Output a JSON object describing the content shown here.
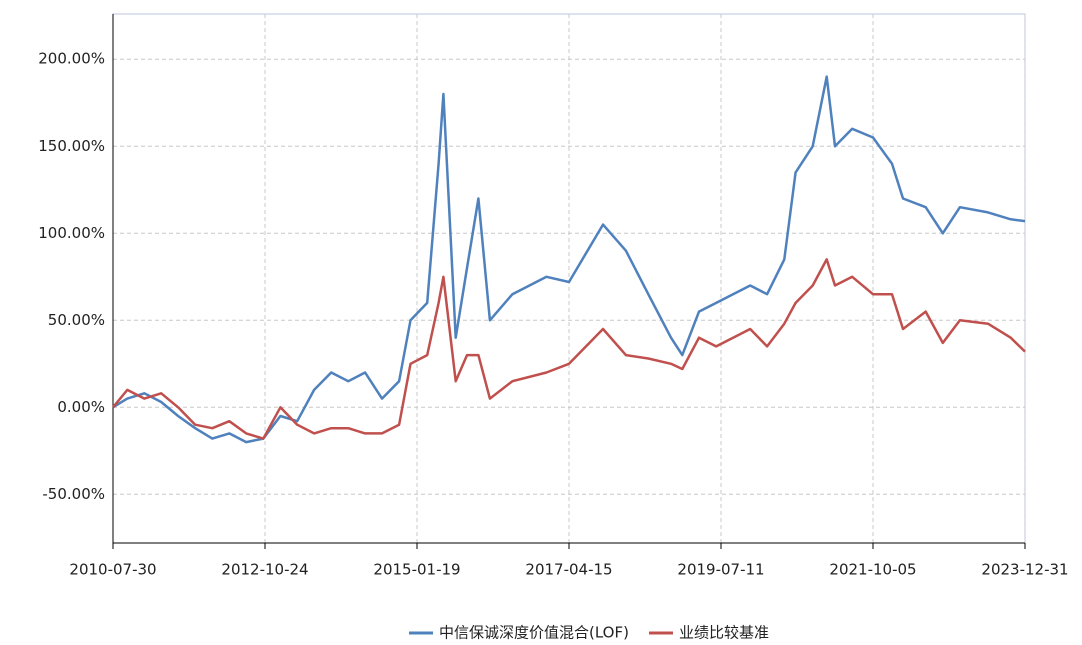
{
  "chart_data": {
    "type": "line",
    "x": [
      "2010-07-30",
      "2010-10-15",
      "2011-01-15",
      "2011-04-15",
      "2011-07-15",
      "2011-10-15",
      "2012-01-15",
      "2012-04-15",
      "2012-07-15",
      "2012-10-15",
      "2013-01-15",
      "2013-04-15",
      "2013-07-15",
      "2013-10-15",
      "2014-01-15",
      "2014-04-15",
      "2014-07-15",
      "2014-10-15",
      "2014-12-15",
      "2015-03-15",
      "2015-05-15",
      "2015-06-10",
      "2015-08-15",
      "2015-10-15",
      "2015-12-15",
      "2016-02-15",
      "2016-06-15",
      "2016-12-15",
      "2017-04-15",
      "2017-10-15",
      "2018-02-15",
      "2018-06-15",
      "2018-10-15",
      "2018-12-15",
      "2019-03-15",
      "2019-06-15",
      "2019-12-15",
      "2020-03-15",
      "2020-06-15",
      "2020-08-15",
      "2020-11-15",
      "2021-01-29",
      "2021-03-15",
      "2021-06-15",
      "2021-10-05",
      "2022-01-15",
      "2022-03-15",
      "2022-07-15",
      "2022-10-15",
      "2023-01-15",
      "2023-06-15",
      "2023-10-15",
      "2023-12-31"
    ],
    "series": [
      {
        "name": "中信保诚深度价值混合(LOF)",
        "color": "#4f81bd",
        "values": [
          0,
          5,
          8,
          3,
          -5,
          -12,
          -18,
          -15,
          -20,
          -18,
          -5,
          -8,
          10,
          20,
          15,
          20,
          5,
          15,
          50,
          60,
          140,
          180,
          40,
          80,
          120,
          50,
          65,
          75,
          72,
          105,
          90,
          65,
          40,
          30,
          55,
          60,
          70,
          65,
          85,
          135,
          150,
          190,
          150,
          160,
          155,
          140,
          120,
          115,
          100,
          115,
          112,
          108,
          107
        ]
      },
      {
        "name": "业绩比较基准",
        "color": "#c0504d",
        "values": [
          0,
          10,
          5,
          8,
          0,
          -10,
          -12,
          -8,
          -15,
          -18,
          0,
          -10,
          -15,
          -12,
          -12,
          -15,
          -15,
          -10,
          25,
          30,
          60,
          75,
          15,
          30,
          30,
          5,
          15,
          20,
          25,
          45,
          30,
          28,
          25,
          22,
          40,
          35,
          45,
          35,
          48,
          60,
          70,
          85,
          70,
          75,
          65,
          65,
          45,
          55,
          37,
          50,
          48,
          40,
          32
        ]
      }
    ],
    "xlim": [
      "2010-07-30",
      "2023-12-31"
    ],
    "xticks": [
      "2010-07-30",
      "2012-10-24",
      "2015-01-19",
      "2017-04-15",
      "2019-07-11",
      "2021-10-05",
      "2023-12-31"
    ],
    "ylim": [
      -78,
      226
    ],
    "yticks": [
      {
        "value": -50,
        "label": "-50.00%"
      },
      {
        "value": 0,
        "label": "0.00%"
      },
      {
        "value": 50,
        "label": "50.00%"
      },
      {
        "value": 100,
        "label": "100.00%"
      },
      {
        "value": 150,
        "label": "150.00%"
      },
      {
        "value": 200,
        "label": "200.00%"
      }
    ],
    "grid": true,
    "legend": "bottom"
  }
}
